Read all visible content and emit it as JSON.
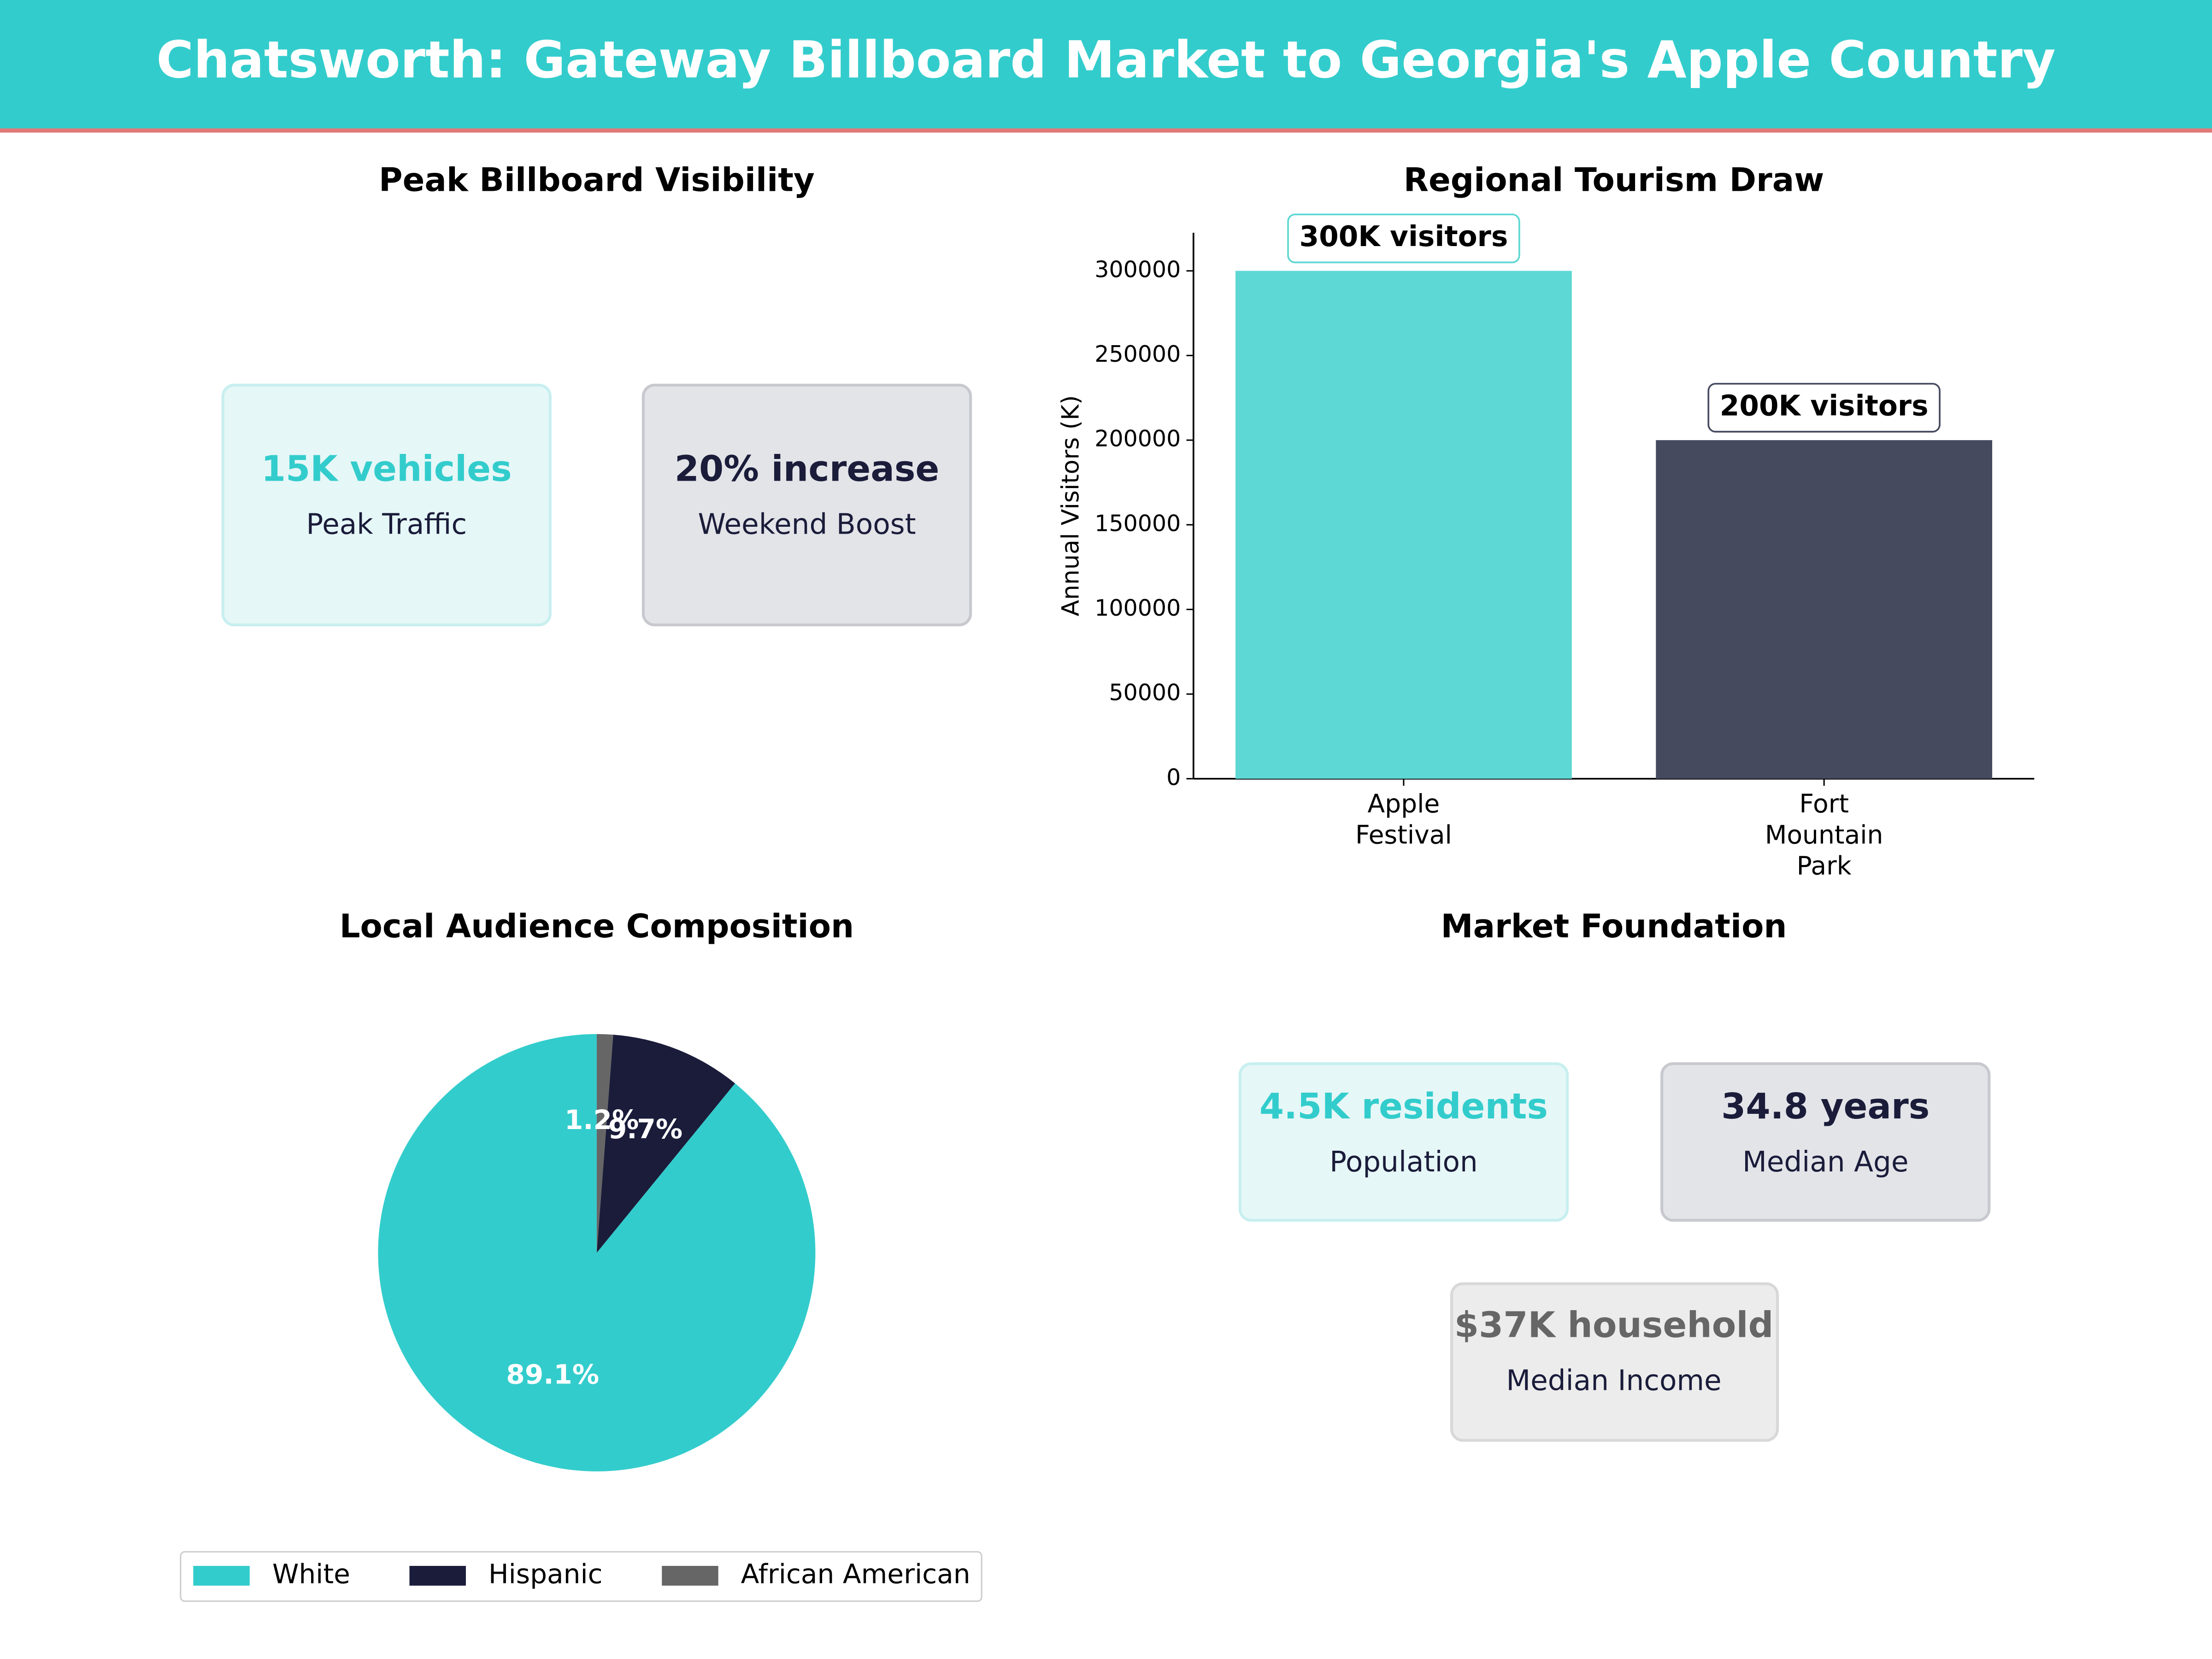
{
  "header": {
    "title": "Chatsworth: Gateway Billboard Market to Georgia's Apple Country"
  },
  "visibility": {
    "title": "Peak Billboard Visibility",
    "cards": [
      {
        "value": "15K vehicles",
        "label": "Peak Traffic"
      },
      {
        "value": "20% increase",
        "label": "Weekend Boost"
      }
    ]
  },
  "market": {
    "title": "Market Foundation",
    "cards": [
      {
        "value": "4.5K residents",
        "label": "Population"
      },
      {
        "value": "34.8 years",
        "label": "Median Age"
      },
      {
        "value": "$37K household",
        "label": "Median Income"
      }
    ]
  },
  "chart_data": [
    {
      "type": "bar",
      "title": "Regional Tourism Draw",
      "y_label": "Annual Visitors (K)",
      "categories": [
        "Apple Festival",
        "Fort Mountain Park"
      ],
      "values": [
        300000,
        200000
      ],
      "value_labels": [
        "300K visitors",
        "200K visitors"
      ],
      "colors": [
        "#5dd8d4",
        "#454a5f"
      ],
      "ylim": [
        0,
        322500
      ],
      "yticks": [
        0,
        50000,
        100000,
        150000,
        200000,
        250000,
        300000
      ]
    },
    {
      "type": "pie",
      "title": "Local Audience Composition",
      "categories": [
        "White",
        "Hispanic",
        "African American"
      ],
      "values": [
        89.1,
        9.7,
        1.2
      ],
      "value_labels": [
        "89.1%",
        "9.7%",
        "1.2%"
      ],
      "colors": [
        "#33cccc",
        "#1a1c3a",
        "#666666"
      ],
      "legend": "bottom"
    }
  ]
}
